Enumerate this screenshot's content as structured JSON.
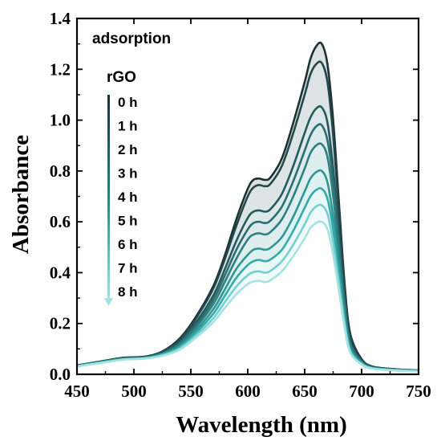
{
  "chart_data": {
    "type": "line",
    "xlabel": "Wavelength (nm)",
    "ylabel": "Absorbance",
    "xlim": [
      450,
      750
    ],
    "ylim": [
      0.0,
      1.4
    ],
    "xticks": [
      "450",
      "500",
      "550",
      "600",
      "650",
      "700",
      "750"
    ],
    "yticks": [
      "0.0",
      "0.2",
      "0.4",
      "0.6",
      "0.8",
      "1.0",
      "1.2",
      "1.4"
    ],
    "legend_title": "adsorption",
    "legend_subtitle": "rGO",
    "legend_placement": "top-left",
    "grid": false,
    "x": [
      450,
      470,
      490,
      510,
      525,
      540,
      555,
      570,
      580,
      590,
      600,
      605,
      610,
      615,
      620,
      630,
      640,
      650,
      655,
      660,
      665,
      670,
      675,
      680,
      685,
      690,
      700,
      710,
      730,
      750
    ],
    "series": [
      {
        "name": "0 h",
        "color": "#1c3134",
        "values": [
          0.035,
          0.05,
          0.065,
          0.07,
          0.09,
          0.14,
          0.23,
          0.35,
          0.47,
          0.61,
          0.73,
          0.765,
          0.77,
          0.765,
          0.775,
          0.85,
          0.99,
          1.15,
          1.24,
          1.29,
          1.3,
          1.22,
          1.0,
          0.68,
          0.36,
          0.16,
          0.06,
          0.03,
          0.02,
          0.015
        ]
      },
      {
        "name": "1 h",
        "color": "#23474b",
        "values": [
          0.035,
          0.05,
          0.064,
          0.069,
          0.088,
          0.136,
          0.224,
          0.34,
          0.455,
          0.585,
          0.7,
          0.735,
          0.745,
          0.74,
          0.75,
          0.82,
          0.95,
          1.1,
          1.18,
          1.22,
          1.225,
          1.15,
          0.94,
          0.64,
          0.34,
          0.15,
          0.057,
          0.03,
          0.02,
          0.015
        ]
      },
      {
        "name": "2 h",
        "color": "#25595d",
        "values": [
          0.034,
          0.049,
          0.063,
          0.068,
          0.085,
          0.128,
          0.208,
          0.312,
          0.415,
          0.525,
          0.615,
          0.64,
          0.645,
          0.64,
          0.65,
          0.71,
          0.82,
          0.95,
          1.01,
          1.045,
          1.05,
          0.99,
          0.81,
          0.55,
          0.3,
          0.13,
          0.052,
          0.028,
          0.019,
          0.015
        ]
      },
      {
        "name": "3 h",
        "color": "#2a6e72",
        "values": [
          0.034,
          0.049,
          0.062,
          0.067,
          0.083,
          0.122,
          0.197,
          0.295,
          0.39,
          0.49,
          0.57,
          0.595,
          0.6,
          0.595,
          0.605,
          0.66,
          0.76,
          0.88,
          0.94,
          0.975,
          0.98,
          0.92,
          0.76,
          0.52,
          0.28,
          0.125,
          0.05,
          0.027,
          0.018,
          0.014
        ]
      },
      {
        "name": "4 h",
        "color": "#2e7f80",
        "values": [
          0.033,
          0.048,
          0.061,
          0.066,
          0.081,
          0.117,
          0.187,
          0.278,
          0.365,
          0.455,
          0.53,
          0.55,
          0.555,
          0.55,
          0.56,
          0.61,
          0.7,
          0.81,
          0.87,
          0.9,
          0.905,
          0.855,
          0.7,
          0.48,
          0.26,
          0.115,
          0.048,
          0.026,
          0.018,
          0.014
        ]
      },
      {
        "name": "5 h",
        "color": "#2f9595",
        "values": [
          0.033,
          0.047,
          0.06,
          0.065,
          0.079,
          0.111,
          0.175,
          0.258,
          0.335,
          0.415,
          0.47,
          0.49,
          0.495,
          0.49,
          0.498,
          0.54,
          0.62,
          0.72,
          0.77,
          0.795,
          0.8,
          0.755,
          0.62,
          0.43,
          0.235,
          0.105,
          0.045,
          0.025,
          0.017,
          0.013
        ]
      },
      {
        "name": "6 h",
        "color": "#33abab",
        "values": [
          0.032,
          0.046,
          0.059,
          0.064,
          0.077,
          0.106,
          0.165,
          0.24,
          0.31,
          0.38,
          0.43,
          0.445,
          0.45,
          0.445,
          0.452,
          0.49,
          0.565,
          0.655,
          0.7,
          0.725,
          0.73,
          0.69,
          0.57,
          0.39,
          0.215,
          0.097,
          0.043,
          0.024,
          0.017,
          0.013
        ]
      },
      {
        "name": "7 h",
        "color": "#76cfcf",
        "values": [
          0.032,
          0.045,
          0.058,
          0.063,
          0.075,
          0.101,
          0.155,
          0.222,
          0.285,
          0.345,
          0.39,
          0.402,
          0.405,
          0.4,
          0.407,
          0.445,
          0.51,
          0.59,
          0.635,
          0.66,
          0.665,
          0.63,
          0.52,
          0.36,
          0.2,
          0.09,
          0.041,
          0.023,
          0.016,
          0.012
        ]
      },
      {
        "name": "8 h",
        "color": "#a7e2e2",
        "values": [
          0.031,
          0.044,
          0.057,
          0.062,
          0.073,
          0.096,
          0.146,
          0.206,
          0.262,
          0.315,
          0.355,
          0.365,
          0.368,
          0.363,
          0.37,
          0.405,
          0.465,
          0.535,
          0.575,
          0.595,
          0.6,
          0.57,
          0.47,
          0.33,
          0.185,
          0.085,
          0.039,
          0.022,
          0.015,
          0.012
        ]
      }
    ]
  }
}
